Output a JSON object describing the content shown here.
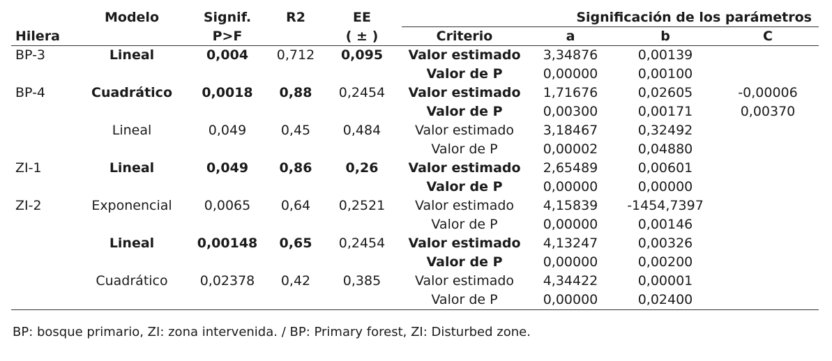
{
  "header": {
    "hilera": "Hilera",
    "modelo": "Modelo",
    "signif_line1": "Signif.",
    "signif_line2": "P>F",
    "r2": "R2",
    "ee_line1": "EE",
    "ee_line2": "( ± )",
    "group_title": "Significación de los parámetros",
    "criterio": "Criterio",
    "a": "a",
    "b": "b",
    "c": "C"
  },
  "rows": [
    {
      "hilera": "BP-3",
      "modelo": "Lineal",
      "signif": "0,004",
      "r2": "0,712",
      "ee": "0,095",
      "criterio": "Valor estimado",
      "a": "3,34876",
      "b": "0,00139",
      "c": ""
    },
    {
      "hilera": "",
      "modelo": "",
      "signif": "",
      "r2": "",
      "ee": "",
      "criterio": "Valor de P",
      "a": "0,00000",
      "b": "0,00100",
      "c": ""
    },
    {
      "hilera": "BP-4",
      "modelo": "Cuadrático",
      "signif": "0,0018",
      "r2": "0,88",
      "ee": "0,2454",
      "criterio": "Valor estimado",
      "a": "1,71676",
      "b": "0,02605",
      "c": "-0,00006"
    },
    {
      "hilera": "",
      "modelo": "",
      "signif": "",
      "r2": "",
      "ee": "",
      "criterio": "Valor de P",
      "a": "0,00300",
      "b": "0,00171",
      "c": "0,00370"
    },
    {
      "hilera": "",
      "modelo": "Lineal",
      "signif": "0,049",
      "r2": "0,45",
      "ee": "0,484",
      "criterio": "Valor estimado",
      "a": "3,18467",
      "b": "0,32492",
      "c": ""
    },
    {
      "hilera": "",
      "modelo": "",
      "signif": "",
      "r2": "",
      "ee": "",
      "criterio": "Valor de P",
      "a": "0,00002",
      "b": "0,04880",
      "c": ""
    },
    {
      "hilera": "ZI-1",
      "modelo": "Lineal",
      "signif": "0,049",
      "r2": "0,86",
      "ee": "0,26",
      "criterio": "Valor estimado",
      "a": "2,65489",
      "b": "0,00601",
      "c": ""
    },
    {
      "hilera": "",
      "modelo": "",
      "signif": "",
      "r2": "",
      "ee": "",
      "criterio": "Valor de P",
      "a": "0,00000",
      "b": "0,00000",
      "c": ""
    },
    {
      "hilera": "ZI-2",
      "modelo": "Exponencial",
      "signif": "0,0065",
      "r2": "0,64",
      "ee": "0,2521",
      "criterio": "Valor estimado",
      "a": "4,15839",
      "b": "-1454,7397",
      "c": ""
    },
    {
      "hilera": "",
      "modelo": "",
      "signif": "",
      "r2": "",
      "ee": "",
      "criterio": "Valor de P",
      "a": "0,00000",
      "b": "0,00146",
      "c": ""
    },
    {
      "hilera": "",
      "modelo": "Lineal",
      "signif": "0,00148",
      "r2": "0,65",
      "ee": "0,2454",
      "criterio": "Valor estimado",
      "a": "4,13247",
      "b": "0,00326",
      "c": ""
    },
    {
      "hilera": "",
      "modelo": "",
      "signif": "",
      "r2": "",
      "ee": "",
      "criterio": "Valor de P",
      "a": "0,00000",
      "b": "0,00200",
      "c": ""
    },
    {
      "hilera": "",
      "modelo": "Cuadrático",
      "signif": "0,02378",
      "r2": "0,42",
      "ee": "0,385",
      "criterio": "Valor estimado",
      "a": "4,34422",
      "b": "0,00001",
      "c": ""
    },
    {
      "hilera": "",
      "modelo": "",
      "signif": "",
      "r2": "",
      "ee": "",
      "criterio": "Valor de P",
      "a": "0,00000",
      "b": "0,02400",
      "c": ""
    }
  ],
  "footnote": "BP: bosque primario, ZI: zona intervenida. / BP: Primary forest, ZI: Disturbed zone."
}
